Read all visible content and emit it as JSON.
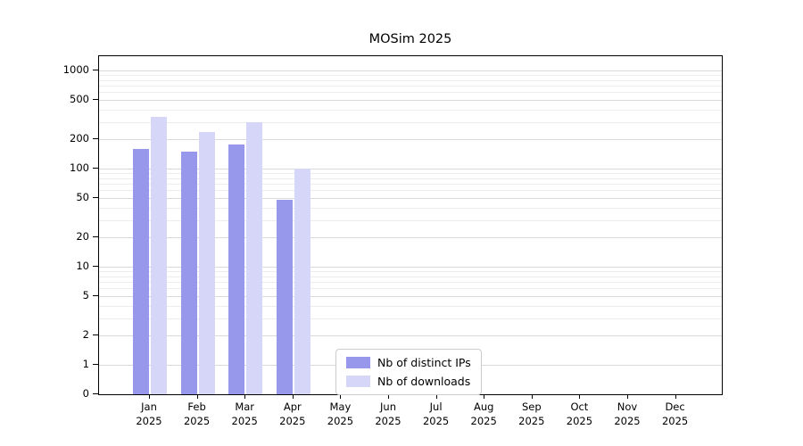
{
  "title": "MOSim 2025",
  "chart_data": {
    "type": "bar",
    "title": "MOSim 2025",
    "categories": [
      "Jan",
      "Feb",
      "Mar",
      "Apr",
      "May",
      "Jun",
      "Jul",
      "Aug",
      "Sep",
      "Oct",
      "Nov",
      "Dec"
    ],
    "category_year": "2025",
    "series": [
      {
        "name": "Nb of distinct IPs",
        "color": "#9797ec",
        "values": [
          160,
          150,
          175,
          48,
          0,
          0,
          0,
          0,
          0,
          0,
          0,
          0
        ]
      },
      {
        "name": "Nb of downloads",
        "color": "#d6d6f9",
        "values": [
          340,
          235,
          300,
          100,
          0,
          0,
          0,
          0,
          0,
          0,
          0,
          0
        ]
      }
    ],
    "y_ticks": [
      0,
      1,
      2,
      5,
      10,
      20,
      50,
      100,
      200,
      500,
      1000
    ],
    "y_scale": "log (symlog with 0 baseline)",
    "ylim": [
      0,
      1400
    ],
    "xlabel": "",
    "ylabel": "",
    "grid": "horizontal, major and minor",
    "legend": {
      "position": "bottom-center-inside",
      "entries": [
        "Nb of distinct IPs",
        "Nb of downloads"
      ]
    }
  },
  "colors": {
    "background": "#ffffff",
    "axis": "#000000",
    "grid_major": "#d9d9d9",
    "grid_minor": "#ededed",
    "legend_border": "#cccccc",
    "bar_distinct_ips": "#9797ec",
    "bar_downloads": "#d6d6f9"
  }
}
